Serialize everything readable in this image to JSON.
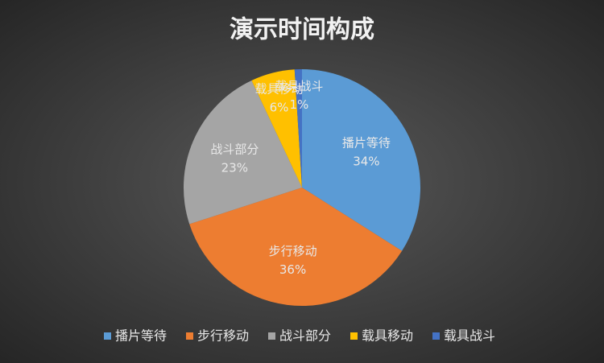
{
  "chart_data": {
    "type": "pie",
    "title": "演示时间构成",
    "categories": [
      "播片等待",
      "步行移动",
      "战斗部分",
      "载具移动",
      "载具战斗"
    ],
    "values": [
      34,
      36,
      23,
      6,
      1
    ],
    "value_labels": [
      "34%",
      "36%",
      "23%",
      "6%",
      "1%"
    ],
    "colors": [
      "#5b9bd5",
      "#ed7d31",
      "#a5a5a5",
      "#ffc000",
      "#4472c4"
    ],
    "legend": "bottom"
  }
}
